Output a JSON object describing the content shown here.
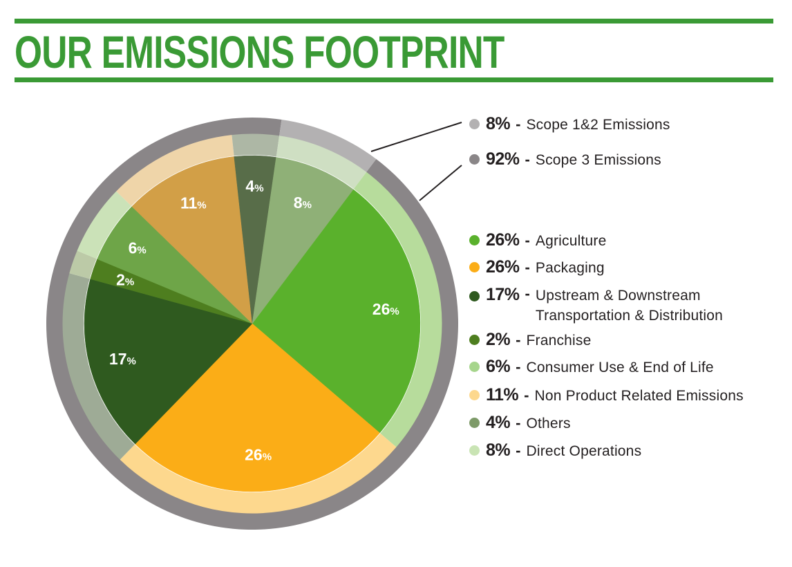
{
  "title": "OUR EMISSIONS FOOTPRINT",
  "colors": {
    "brand_green": "#3a9a35",
    "outer_ring": "#8a8688",
    "scope12_ring": "#b3b1b2",
    "scope12_dot": "#b3b1b2",
    "scope3_dot": "#8a8688"
  },
  "chart_data": {
    "type": "pie",
    "unit": "%",
    "scope_ring": [
      {
        "name": "Scope 1&2 Emissions",
        "value": 8,
        "label": "8%",
        "color": "#b3b1b2"
      },
      {
        "name": "Scope 3 Emissions",
        "value": 92,
        "label": "92%",
        "color": "#8a8688"
      }
    ],
    "slices": [
      {
        "name": "Agriculture",
        "value": 26,
        "color": "#5ab12c",
        "ring": "#b7dc9c"
      },
      {
        "name": "Packaging",
        "value": 26,
        "color": "#fbad17",
        "ring": "#fdd88e"
      },
      {
        "name": "Upstream & Downstream Transportation & Distribution",
        "value": 17,
        "color": "#2f5a1f",
        "ring": "#9eab96"
      },
      {
        "name": "Franchise",
        "value": 2,
        "color": "#4e7e1f",
        "ring": "#bccaa7"
      },
      {
        "name": "Consumer Use & End of Life",
        "value": 6,
        "color": "#6ea548",
        "ring": "#cbe2b8"
      },
      {
        "name": "Non Product Related Emissions",
        "value": 11,
        "color": "#d29f47",
        "ring": "#efd5a9"
      },
      {
        "name": "Others",
        "value": 4,
        "color": "#586d49",
        "ring": "#adb7a5"
      },
      {
        "name": "Direct Operations",
        "value": 8,
        "color": "#8fb077",
        "ring": "#cfdfc3"
      }
    ],
    "slice_labels": [
      "26",
      "26",
      "17",
      "2",
      "6",
      "11",
      "4",
      "8"
    ]
  },
  "legend": {
    "scope": [
      {
        "pct": "8%",
        "label": "Scope 1&2 Emissions",
        "color": "#b3b1b2"
      },
      {
        "pct": "92%",
        "label": "Scope 3 Emissions",
        "color": "#8a8688"
      }
    ],
    "items": [
      {
        "pct": "26%",
        "label": "Agriculture",
        "color": "#5ab12c"
      },
      {
        "pct": "26%",
        "label": "Packaging",
        "color": "#fbad17"
      },
      {
        "pct": "17%",
        "label": "Upstream & Downstream\nTransportation & Distribution",
        "color": "#2f5a1f"
      },
      {
        "pct": "2%",
        "label": "Franchise",
        "color": "#4e7e1f"
      },
      {
        "pct": "6%",
        "label": "Consumer Use & End of Life",
        "color": "#a6d58c"
      },
      {
        "pct": "11%",
        "label": "Non Product Related Emissions",
        "color": "#fdd88e"
      },
      {
        "pct": "4%",
        "label": "Others",
        "color": "#7d9a68"
      },
      {
        "pct": "8%",
        "label": "Direct Operations",
        "color": "#c9e4b4"
      }
    ],
    "dash": "-"
  }
}
